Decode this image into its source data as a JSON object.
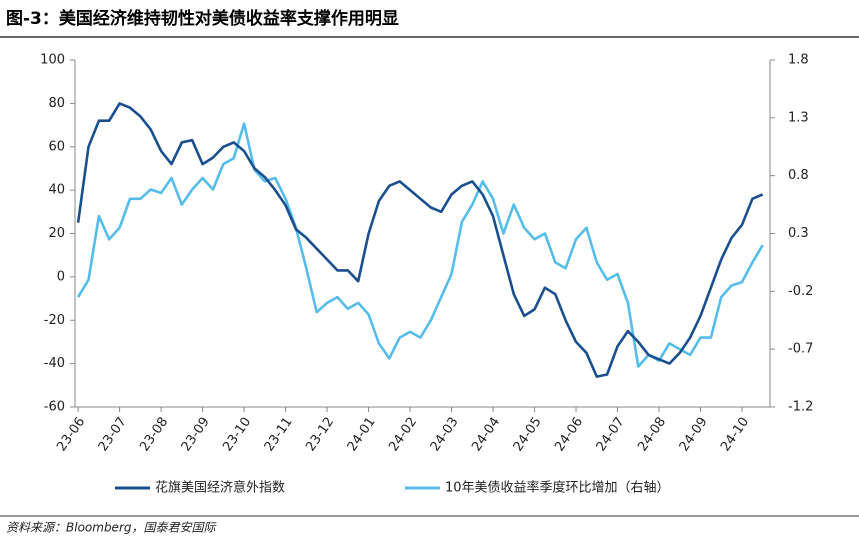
{
  "chart_data": {
    "type": "line",
    "title": "图-3：美国经济维持韧性对美债收益率支撑作用明显",
    "source": "资料来源：Bloomberg，国泰君安国际",
    "categories": [
      "23-06",
      null,
      null,
      null,
      "23-07",
      null,
      null,
      null,
      "23-08",
      null,
      null,
      null,
      "23-09",
      null,
      null,
      null,
      "23-10",
      null,
      null,
      null,
      "23-11",
      null,
      null,
      null,
      "23-12",
      null,
      null,
      null,
      "24-01",
      null,
      null,
      null,
      "24-02",
      null,
      null,
      null,
      "24-03",
      null,
      null,
      null,
      "24-04",
      null,
      null,
      null,
      "24-05",
      null,
      null,
      null,
      "24-06",
      null,
      null,
      null,
      "24-07",
      null,
      null,
      null,
      "24-08",
      null,
      null,
      null,
      "24-09",
      null,
      null,
      null,
      "24-10",
      null,
      null
    ],
    "ylim": [
      -60,
      100
    ],
    "yticks": [
      -60,
      -40,
      -20,
      0,
      20,
      40,
      60,
      80,
      100
    ],
    "y2lim": [
      -1.2,
      1.8
    ],
    "y2ticks": [
      -1.2,
      -0.7,
      -0.2,
      0.3,
      0.8,
      1.3,
      1.8
    ],
    "series": [
      {
        "name": "花旗美国经济意外指数",
        "color": "#1a4f8f",
        "values": [
          25,
          60,
          72,
          72,
          80,
          78,
          74,
          68,
          58,
          52,
          62,
          63,
          52,
          55,
          60,
          62,
          58,
          50,
          46,
          40,
          33,
          22,
          18,
          13,
          8,
          3,
          3,
          -2,
          20,
          35,
          42,
          44,
          40,
          36,
          32,
          30,
          38,
          42,
          44,
          38,
          28,
          10,
          -8,
          -18,
          -15,
          -5,
          -8,
          -20,
          -30,
          -35,
          -46,
          -45,
          -32,
          -25,
          -30,
          -36,
          -38,
          -40,
          -35,
          -28,
          -18,
          -5,
          8,
          18,
          24,
          36,
          38
        ]
      },
      {
        "name": "10年美债收益率季度环比增加（右轴）",
        "color": "#55bde9",
        "axis": "y2",
        "values": [
          -0.25,
          -0.1,
          0.45,
          0.25,
          0.35,
          0.6,
          0.6,
          0.68,
          0.65,
          0.78,
          0.55,
          0.68,
          0.78,
          0.68,
          0.9,
          0.95,
          1.25,
          0.85,
          0.75,
          0.78,
          0.6,
          0.35,
          0.0,
          -0.38,
          -0.3,
          -0.25,
          -0.35,
          -0.3,
          -0.4,
          -0.65,
          -0.78,
          -0.6,
          -0.55,
          -0.6,
          -0.45,
          -0.25,
          -0.05,
          0.4,
          0.55,
          0.75,
          0.6,
          0.3,
          0.55,
          0.35,
          0.25,
          0.3,
          0.05,
          0.0,
          0.25,
          0.35,
          0.05,
          -0.1,
          -0.05,
          -0.3,
          -0.85,
          -0.75,
          -0.8,
          -0.65,
          -0.7,
          -0.75,
          -0.6,
          -0.6,
          -0.25,
          -0.15,
          -0.12,
          0.05,
          0.2
        ]
      }
    ]
  }
}
